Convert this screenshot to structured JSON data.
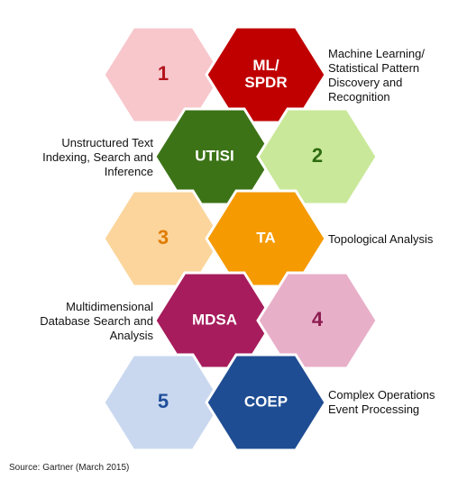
{
  "hexagons": [
    {
      "id": "num-1",
      "label": "1",
      "fill": "#f7c7cc",
      "text_color": "#b3141c"
    },
    {
      "id": "ml-spdr",
      "label": [
        "ML/",
        "SPDR"
      ],
      "fill": "#c00000",
      "text_color": "#ffffff"
    },
    {
      "id": "utisi",
      "label": "UTISI",
      "fill": "#3c7317",
      "text_color": "#ffffff"
    },
    {
      "id": "num-2",
      "label": "2",
      "fill": "#c9e89a",
      "text_color": "#2e6b10"
    },
    {
      "id": "num-3",
      "label": "3",
      "fill": "#fbd59b",
      "text_color": "#e07b00"
    },
    {
      "id": "ta",
      "label": "TA",
      "fill": "#f59a00",
      "text_color": "#ffffff"
    },
    {
      "id": "mdsa",
      "label": "MDSA",
      "fill": "#a61c5c",
      "text_color": "#ffffff"
    },
    {
      "id": "num-4",
      "label": "4",
      "fill": "#e8afc9",
      "text_color": "#8c1d4f"
    },
    {
      "id": "num-5",
      "label": "5",
      "fill": "#c9d8ef",
      "text_color": "#1f4e9a"
    },
    {
      "id": "coep",
      "label": "COEP",
      "fill": "#1f4d93",
      "text_color": "#ffffff"
    }
  ],
  "descriptions": {
    "ml_spdr": [
      "Machine Learning/",
      "Statistical Pattern",
      "Discovery and",
      "Recognition"
    ],
    "utisi": [
      "Unstructured Text",
      "Indexing, Search and",
      "Inference"
    ],
    "ta": [
      "Topological Analysis"
    ],
    "mdsa": [
      "Multidimensional",
      "Database Search and",
      "Analysis"
    ],
    "coep": [
      "Complex Operations",
      "Event Processing"
    ]
  },
  "source": "Source: Gartner (March 2015)"
}
